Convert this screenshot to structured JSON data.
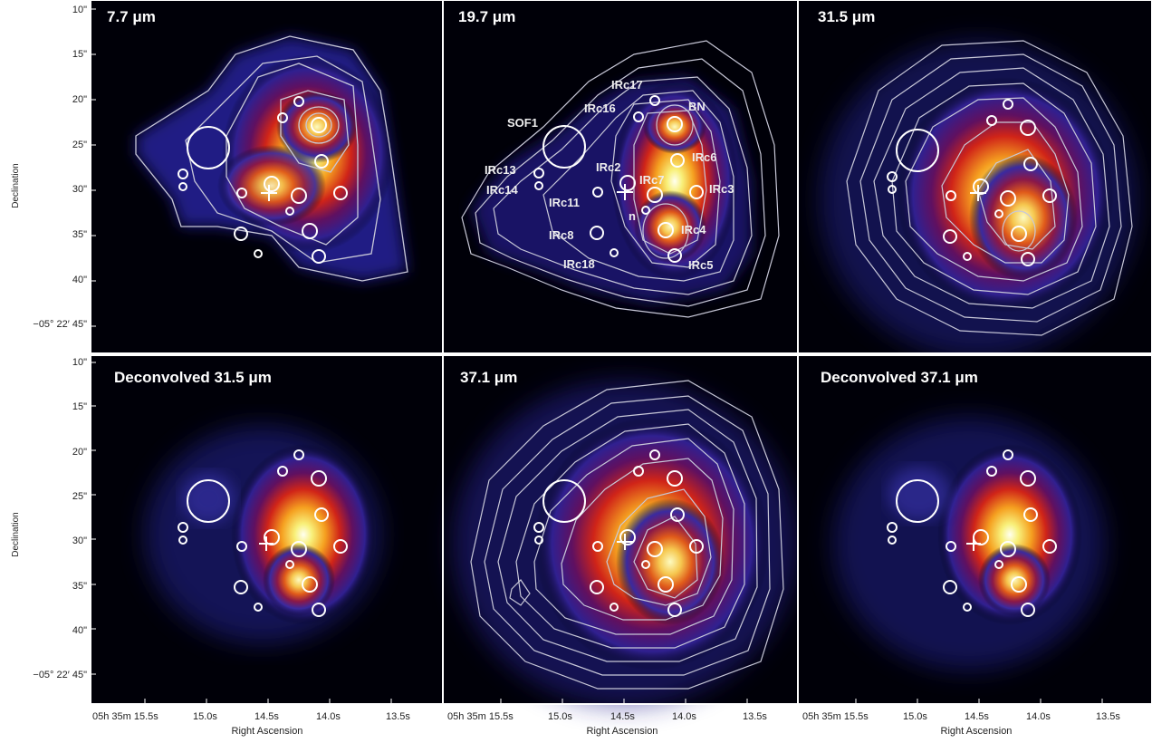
{
  "figure": {
    "panels": [
      {
        "title": "7.7 μm"
      },
      {
        "title": "19.7 μm"
      },
      {
        "title": "31.5 μm"
      },
      {
        "title": "Deconvolved 31.5 μm"
      },
      {
        "title": "37.1 μm"
      },
      {
        "title": "Deconvolved 37.1 μm"
      }
    ],
    "y_axis": {
      "title": "Declination",
      "ticks": [
        "10\"",
        "15\"",
        "20\"",
        "25\"",
        "30\"",
        "35\"",
        "40\"",
        "−05° 22′ 45\""
      ]
    },
    "x_axis": {
      "title": "Right Ascension",
      "ticks": [
        "05h 35m 15.5s",
        "15.0s",
        "14.5s",
        "14.0s",
        "13.5s"
      ]
    },
    "source_labels": [
      "IRc17",
      "BN",
      "IRc16",
      "SOF1",
      "IRc6",
      "IRc2",
      "IRc13",
      "IRc7",
      "IRc3",
      "IRc14",
      "IRc11",
      "n",
      "IRc4",
      "IRc8",
      "IRc18",
      "IRc5"
    ]
  }
}
